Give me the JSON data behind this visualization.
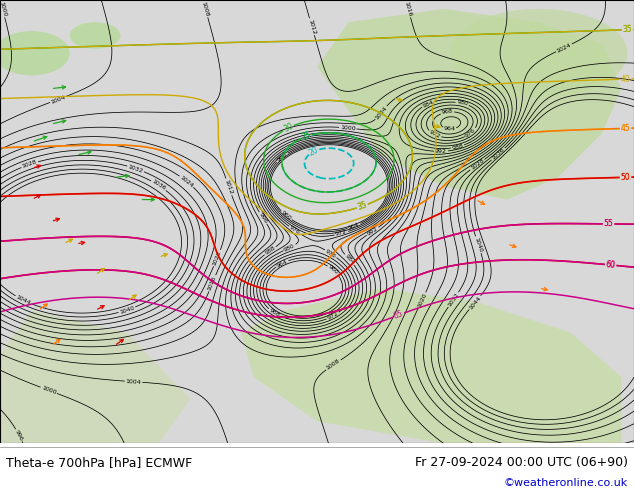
{
  "title_left": "Theta-e 700hPa [hPa] ECMWF",
  "title_right": "Fr 27-09-2024 00:00 UTC (06+90)",
  "credit": "©weatheronline.co.uk",
  "fig_width": 6.34,
  "fig_height": 4.9,
  "dpi": 100,
  "title_fontsize": 9,
  "credit_fontsize": 8,
  "credit_color": "#0000cc"
}
